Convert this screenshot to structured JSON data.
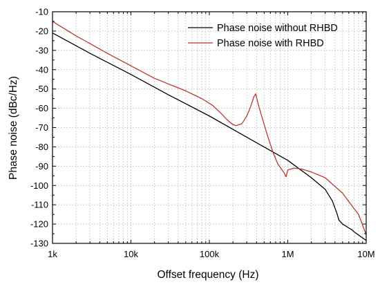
{
  "chart_data": {
    "type": "line",
    "xscale": "log",
    "xlabel": "Offset frequency (Hz)",
    "ylabel": "Phase noise (dBc/Hz)",
    "xlim": [
      1000,
      10000000
    ],
    "ylim": [
      -130,
      -10
    ],
    "grid": true,
    "legend_position": "top-right",
    "x_ticks": [
      {
        "value": 1000,
        "label": "1k"
      },
      {
        "value": 10000,
        "label": "10k"
      },
      {
        "value": 100000,
        "label": "100k"
      },
      {
        "value": 1000000,
        "label": "1M"
      },
      {
        "value": 10000000,
        "label": "10M"
      }
    ],
    "y_ticks": [
      {
        "value": -10,
        "label": "-10"
      },
      {
        "value": -20,
        "label": "-20"
      },
      {
        "value": -30,
        "label": "-30"
      },
      {
        "value": -40,
        "label": "-40"
      },
      {
        "value": -50,
        "label": "-50"
      },
      {
        "value": -60,
        "label": "-60"
      },
      {
        "value": -70,
        "label": "-70"
      },
      {
        "value": -80,
        "label": "-80"
      },
      {
        "value": -90,
        "label": "-90"
      },
      {
        "value": -100,
        "label": "-100"
      },
      {
        "value": -110,
        "label": "-110"
      },
      {
        "value": -120,
        "label": "-120"
      },
      {
        "value": -130,
        "label": "-130"
      }
    ],
    "series": [
      {
        "name": "Phase noise without RHBD",
        "color": "#000000",
        "points": [
          [
            1000,
            -21
          ],
          [
            3000,
            -31.5
          ],
          [
            10000,
            -42.5
          ],
          [
            30000,
            -53
          ],
          [
            100000,
            -64
          ],
          [
            300000,
            -75
          ],
          [
            1000000,
            -87
          ],
          [
            2000000,
            -96
          ],
          [
            3000000,
            -102
          ],
          [
            3700000,
            -108
          ],
          [
            4200000,
            -114
          ],
          [
            4500000,
            -118
          ],
          [
            5000000,
            -120
          ],
          [
            5500000,
            -121
          ],
          [
            6000000,
            -122
          ],
          [
            6600000,
            -123
          ],
          [
            7000000,
            -124
          ],
          [
            10000000,
            -128.5
          ]
        ]
      },
      {
        "name": "Phase noise with RHBD",
        "color": "#b8372f",
        "points": [
          [
            1000,
            -15
          ],
          [
            2000,
            -22.5
          ],
          [
            5000,
            -31.5
          ],
          [
            10000,
            -38
          ],
          [
            20000,
            -44.5
          ],
          [
            50000,
            -51
          ],
          [
            80000,
            -55
          ],
          [
            110000,
            -58.5
          ],
          [
            140000,
            -62.5
          ],
          [
            160000,
            -65
          ],
          [
            180000,
            -67
          ],
          [
            200000,
            -68.5
          ],
          [
            220000,
            -69
          ],
          [
            240000,
            -68.5
          ],
          [
            260000,
            -68
          ],
          [
            280000,
            -66
          ],
          [
            300000,
            -64
          ],
          [
            330000,
            -60
          ],
          [
            350000,
            -57
          ],
          [
            370000,
            -54
          ],
          [
            390000,
            -52.5
          ],
          [
            420000,
            -58
          ],
          [
            480000,
            -66
          ],
          [
            550000,
            -74
          ],
          [
            650000,
            -83
          ],
          [
            750000,
            -89
          ],
          [
            900000,
            -93.5
          ],
          [
            950000,
            -95.5
          ],
          [
            1000000,
            -92
          ],
          [
            1100000,
            -91.5
          ],
          [
            1200000,
            -91
          ],
          [
            1500000,
            -91.5
          ],
          [
            2000000,
            -93
          ],
          [
            3000000,
            -96
          ],
          [
            5000000,
            -104
          ],
          [
            7000000,
            -112
          ],
          [
            8000000,
            -115
          ],
          [
            10000000,
            -125.5
          ]
        ]
      }
    ]
  }
}
